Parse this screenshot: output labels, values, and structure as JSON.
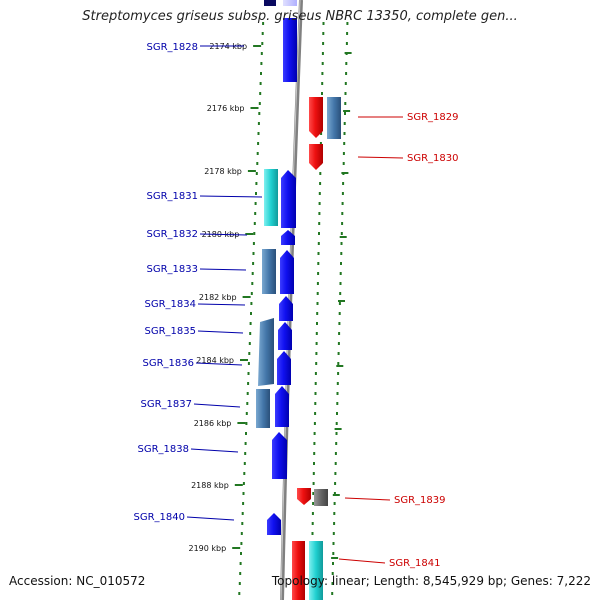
{
  "title": "Streptomyces griseus subsp. griseus NBRC 13350, complete gen...",
  "accession": "Accession: NC_010572",
  "topology": "Topology: linear; Length: 8,545,929 bp; Genes: 7,222",
  "ruler_ticks": [
    "2174 kbp",
    "2176 kbp",
    "2178 kbp",
    "2180 kbp",
    "2182 kbp",
    "2184 kbp",
    "2186 kbp",
    "2188 kbp",
    "2190 kbp"
  ],
  "genes_left": [
    "SGR_1828",
    "SGR_1831",
    "SGR_1832",
    "SGR_1833",
    "SGR_1834",
    "SGR_1835",
    "SGR_1836",
    "SGR_1837",
    "SGR_1838",
    "SGR_1840"
  ],
  "genes_right": [
    "SGR_1829",
    "SGR_1830",
    "SGR_1839",
    "SGR_1841"
  ],
  "colors": {
    "forward_strand": "#0000ee",
    "reverse_strand": "#ee0000",
    "left_label": "#0000aa",
    "right_label": "#cc0000",
    "ruler": "#227722",
    "backbone": "#808080",
    "ortholog_cyan": "#22cccc",
    "ortholog_steel": "#4477aa",
    "ortholog_gray": "#666666"
  }
}
